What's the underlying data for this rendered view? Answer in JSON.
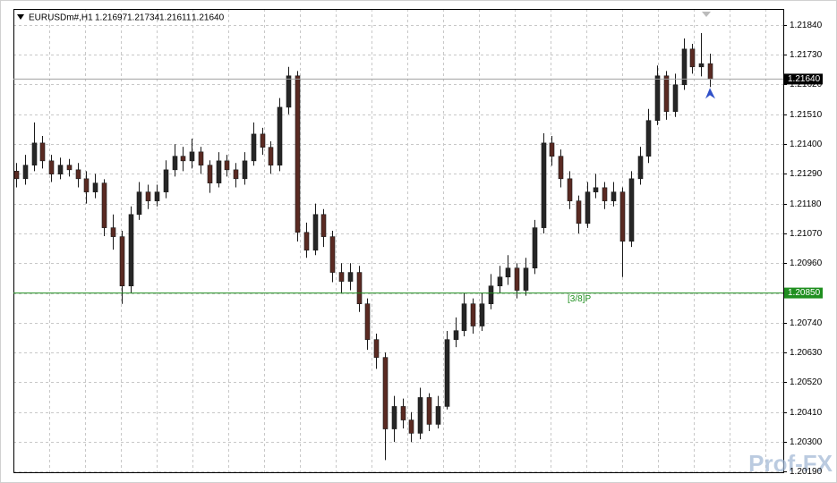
{
  "chart_data": {
    "type": "candlestick",
    "header": {
      "symbol": "EURUSDm#,H1",
      "ohlc": [
        "1.21697",
        "1.21734",
        "1.21611",
        "1.21640"
      ]
    },
    "up_color": "#262626",
    "down_color": "#5a2a22",
    "wick_color": "#1a1a1a",
    "open": [
      1.213,
      1.21272,
      1.21322,
      1.21404,
      1.21338,
      1.21289,
      1.21322,
      1.21305,
      1.21272,
      1.21223,
      1.21256,
      1.21091,
      1.21058,
      1.20876,
      1.2114,
      1.21223,
      1.2119,
      1.21223,
      1.21305,
      1.21355,
      1.21338,
      1.21371,
      1.21322,
      1.21256,
      1.21338,
      1.21305,
      1.21272,
      1.21338,
      1.21437,
      1.21388,
      1.21322,
      1.21536,
      1.21652,
      1.21074,
      1.21008,
      1.2114,
      1.21058,
      1.20926,
      1.20893,
      1.20926,
      1.2081,
      1.20678,
      1.20612,
      1.20348,
      1.20431,
      1.20381,
      1.20332,
      1.20464,
      1.20365,
      1.20431,
      1.20678,
      1.20711,
      1.2081,
      1.20728,
      1.2081,
      1.20876,
      1.20909,
      1.20942,
      1.2086,
      1.20942,
      1.21091,
      1.21404,
      1.21355,
      1.21272,
      1.2119,
      1.21107,
      1.21223,
      1.21239,
      1.2119,
      1.21223,
      1.21041,
      1.21272,
      1.21355,
      1.21487,
      1.21652,
      1.2152,
      1.21619,
      1.21751,
      1.21685,
      1.21697
    ],
    "high": [
      1.2133,
      1.2136,
      1.2148,
      1.2143,
      1.2136,
      1.2135,
      1.21345,
      1.2133,
      1.213,
      1.2129,
      1.2127,
      1.2114,
      1.2108,
      1.2117,
      1.2126,
      1.2125,
      1.2125,
      1.2134,
      1.214,
      1.2139,
      1.2142,
      1.2139,
      1.2134,
      1.2137,
      1.2136,
      1.2133,
      1.2137,
      1.2148,
      1.2146,
      1.2141,
      1.2157,
      1.21685,
      1.2167,
      1.2111,
      1.2118,
      1.2116,
      1.2108,
      1.2096,
      1.2096,
      1.2095,
      1.2083,
      1.207,
      1.2063,
      1.2047,
      1.2046,
      1.2041,
      1.205,
      1.2048,
      1.2047,
      1.2071,
      1.2076,
      1.2085,
      1.2083,
      1.2085,
      1.2092,
      1.2095,
      1.2099,
      1.2096,
      1.2098,
      1.2112,
      1.2144,
      1.2143,
      1.2138,
      1.213,
      1.2121,
      1.2126,
      1.2129,
      1.2126,
      1.2126,
      1.2124,
      1.213,
      1.2139,
      1.2153,
      1.2169,
      1.2167,
      1.2166,
      1.2179,
      1.2177,
      1.2181,
      1.21734
    ],
    "low": [
      1.2124,
      1.2125,
      1.213,
      1.2131,
      1.2126,
      1.2127,
      1.2128,
      1.2124,
      1.2118,
      1.212,
      1.2106,
      1.2101,
      1.2081,
      1.2085,
      1.2112,
      1.2116,
      1.2117,
      1.212,
      1.2128,
      1.213,
      1.2131,
      1.2129,
      1.2122,
      1.2124,
      1.2128,
      1.2124,
      1.2125,
      1.2132,
      1.2136,
      1.2129,
      1.213,
      1.2151,
      1.2104,
      1.2098,
      1.2099,
      1.2102,
      1.2089,
      1.2085,
      1.2086,
      1.2078,
      1.2064,
      1.2057,
      1.20233,
      1.203,
      1.2035,
      1.203,
      1.2031,
      1.2034,
      1.2035,
      1.2042,
      1.2065,
      1.2069,
      1.207,
      1.2071,
      1.2079,
      1.2085,
      1.2088,
      1.2083,
      1.2084,
      1.2092,
      1.2107,
      1.2132,
      1.2124,
      1.2116,
      1.2107,
      1.2109,
      1.212,
      1.2116,
      1.2117,
      1.20909,
      1.2102,
      1.2125,
      1.2133,
      1.2147,
      1.2149,
      1.215,
      1.216,
      1.2166,
      1.2165,
      1.21611
    ],
    "close": [
      1.21272,
      1.21322,
      1.21404,
      1.21338,
      1.21289,
      1.21322,
      1.21305,
      1.21272,
      1.21223,
      1.21256,
      1.21091,
      1.21058,
      1.20876,
      1.2114,
      1.21223,
      1.2119,
      1.21223,
      1.21305,
      1.21355,
      1.21338,
      1.21371,
      1.21322,
      1.21256,
      1.21338,
      1.21305,
      1.21272,
      1.21338,
      1.21437,
      1.21388,
      1.21322,
      1.21536,
      1.21652,
      1.21074,
      1.21008,
      1.2114,
      1.21058,
      1.20926,
      1.20893,
      1.20926,
      1.2081,
      1.20678,
      1.20612,
      1.20348,
      1.20431,
      1.20381,
      1.20332,
      1.20464,
      1.20365,
      1.20431,
      1.20678,
      1.20711,
      1.2081,
      1.20728,
      1.2081,
      1.20876,
      1.20909,
      1.20942,
      1.2086,
      1.20942,
      1.21091,
      1.21404,
      1.21355,
      1.21272,
      1.2119,
      1.21107,
      1.21223,
      1.21239,
      1.2119,
      1.21223,
      1.21041,
      1.21272,
      1.21355,
      1.21487,
      1.21652,
      1.2152,
      1.21619,
      1.21751,
      1.21685,
      1.21697,
      1.2164
    ],
    "ylim": [
      1.20188,
      1.21899
    ],
    "yticks": [
      {
        "value": 1.2184,
        "label": "1.21840"
      },
      {
        "value": 1.2173,
        "label": "1.21730"
      },
      {
        "value": 1.2162,
        "label": "1.21620"
      },
      {
        "value": 1.2151,
        "label": "1.21510"
      },
      {
        "value": 1.214,
        "label": "1.21400"
      },
      {
        "value": 1.2129,
        "label": "1.21290"
      },
      {
        "value": 1.2118,
        "label": "1.21180"
      },
      {
        "value": 1.2107,
        "label": "1.21070"
      },
      {
        "value": 1.2096,
        "label": "1.20960"
      },
      {
        "value": 1.2085,
        "label": "1.20850"
      },
      {
        "value": 1.2074,
        "label": "1.20740"
      },
      {
        "value": 1.2063,
        "label": "1.20630"
      },
      {
        "value": 1.2052,
        "label": "1.20520"
      },
      {
        "value": 1.2041,
        "label": "1.20410"
      },
      {
        "value": 1.203,
        "label": "1.20300"
      },
      {
        "value": 1.2019,
        "label": "1.20190"
      }
    ],
    "grid": true,
    "current_price": {
      "value": 1.2164,
      "value_label": "1.21640",
      "color": "#a0a0a0"
    },
    "level": {
      "label": "[3/8]P",
      "value": 1.2085,
      "value_label": "1.20850",
      "color": "#1f8f1f"
    },
    "watermark": "Prof-FX"
  }
}
